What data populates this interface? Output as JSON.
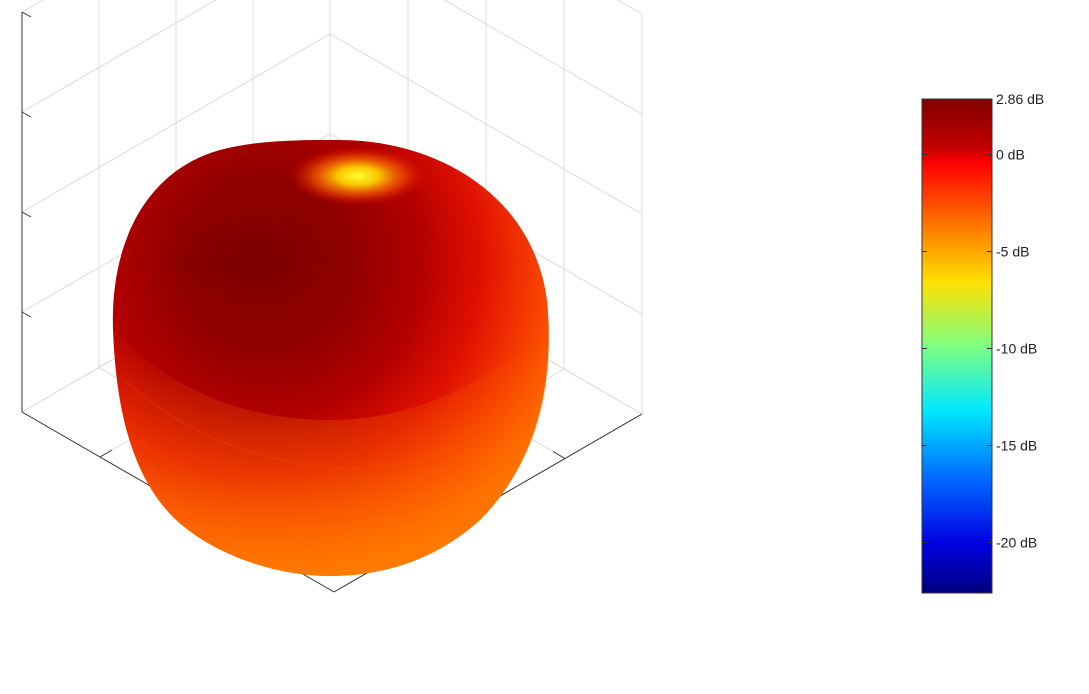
{
  "chart_data": {
    "type": "surface",
    "title": "",
    "xlabel": "",
    "ylabel": "",
    "zlabel": "",
    "grid": true,
    "axis_tick_labels": false,
    "colormap": "jet",
    "colorbar": {
      "placement": "right",
      "min_db": -22.6,
      "max_db": 2.86,
      "ticks": [
        {
          "value": 2.86,
          "label": "2.86 dB"
        },
        {
          "value": 0,
          "label": "0 dB"
        },
        {
          "value": -5,
          "label": "-5 dB"
        },
        {
          "value": -10,
          "label": "-10 dB"
        },
        {
          "value": -15,
          "label": "-15 dB"
        },
        {
          "value": -20,
          "label": "-20 dB"
        }
      ]
    },
    "surface_levels_db": {
      "max": 2.86,
      "top_hotspot": -5,
      "bottom_region": -3
    }
  }
}
